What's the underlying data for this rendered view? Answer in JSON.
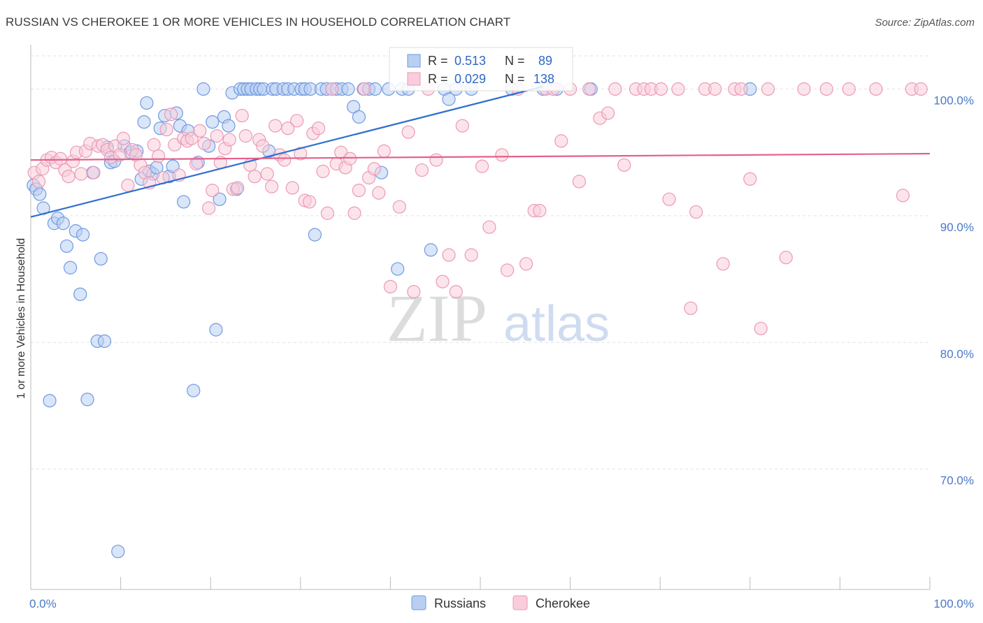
{
  "title": "RUSSIAN VS CHEROKEE 1 OR MORE VEHICLES IN HOUSEHOLD CORRELATION CHART",
  "source": "Source: ZipAtlas.com",
  "watermark": {
    "zip": "ZIP",
    "atlas": "atlas"
  },
  "chart_data": {
    "type": "scatter",
    "title": "RUSSIAN VS CHEROKEE 1 OR MORE VEHICLES IN HOUSEHOLD CORRELATION CHART",
    "xlabel": "",
    "ylabel": "1 or more Vehicles in Household",
    "xlim": [
      0,
      100
    ],
    "ylim": [
      60.5,
      103.5
    ],
    "x_tick_labels": [
      {
        "value": 0,
        "label": "0.0%"
      },
      {
        "value": 100,
        "label": "100.0%"
      }
    ],
    "x_minor_ticks": [
      10,
      20,
      30,
      40,
      50,
      60,
      70,
      80,
      90,
      100
    ],
    "y_ticks": [
      {
        "value": 70,
        "label": "70.0%"
      },
      {
        "value": 80,
        "label": "80.0%"
      },
      {
        "value": 90,
        "label": "90.0%"
      },
      {
        "value": 100,
        "label": "100.0%"
      }
    ],
    "legend_position": "bottom",
    "stats": [
      {
        "name": "Russians",
        "r_label": "R =",
        "r_value": "0.513",
        "n_label": "N =",
        "n_value": "89"
      },
      {
        "name": "Cherokee",
        "r_label": "R =",
        "r_value": "0.029",
        "n_label": "N =",
        "n_value": "138"
      }
    ],
    "series": [
      {
        "name": "Russians",
        "color": "#6f9ae0",
        "fill": "#b9cff2",
        "trend": {
          "x": [
            0,
            57
          ],
          "y": [
            89.9,
            100.2
          ],
          "color": "#2f6fd0"
        },
        "points": [
          [
            0.3,
            92.4
          ],
          [
            0.6,
            92.1
          ],
          [
            1.0,
            91.7
          ],
          [
            1.4,
            90.6
          ],
          [
            2.1,
            75.4
          ],
          [
            2.6,
            89.4
          ],
          [
            3.0,
            89.8
          ],
          [
            3.6,
            89.4
          ],
          [
            4.0,
            87.6
          ],
          [
            4.4,
            85.9
          ],
          [
            5.0,
            88.8
          ],
          [
            5.5,
            83.8
          ],
          [
            5.8,
            88.5
          ],
          [
            6.3,
            75.5
          ],
          [
            6.9,
            93.4
          ],
          [
            7.4,
            80.1
          ],
          [
            7.8,
            86.6
          ],
          [
            8.2,
            80.1
          ],
          [
            8.5,
            95.4
          ],
          [
            8.9,
            94.2
          ],
          [
            9.3,
            94.3
          ],
          [
            9.7,
            63.5
          ],
          [
            10.4,
            95.5
          ],
          [
            11.1,
            95.0
          ],
          [
            11.8,
            95.1
          ],
          [
            12.3,
            92.9
          ],
          [
            12.6,
            97.4
          ],
          [
            12.9,
            98.9
          ],
          [
            13.2,
            93.5
          ],
          [
            13.6,
            93.3
          ],
          [
            14.0,
            93.8
          ],
          [
            14.4,
            96.9
          ],
          [
            14.9,
            97.9
          ],
          [
            15.4,
            93.1
          ],
          [
            15.8,
            93.9
          ],
          [
            16.2,
            98.1
          ],
          [
            16.6,
            97.1
          ],
          [
            17.0,
            91.1
          ],
          [
            17.5,
            96.7
          ],
          [
            18.1,
            76.2
          ],
          [
            18.6,
            94.2
          ],
          [
            19.2,
            100.0
          ],
          [
            19.8,
            95.5
          ],
          [
            20.2,
            97.4
          ],
          [
            20.6,
            81.0
          ],
          [
            21.0,
            91.3
          ],
          [
            21.5,
            97.8
          ],
          [
            22.0,
            97.1
          ],
          [
            22.4,
            99.7
          ],
          [
            22.9,
            92.1
          ],
          [
            23.3,
            100.0
          ],
          [
            23.7,
            100.0
          ],
          [
            24.1,
            100.0
          ],
          [
            24.5,
            100.0
          ],
          [
            25.1,
            100.0
          ],
          [
            25.5,
            100.0
          ],
          [
            25.9,
            100.0
          ],
          [
            26.5,
            95.1
          ],
          [
            26.9,
            100.0
          ],
          [
            27.3,
            100.0
          ],
          [
            28.1,
            100.0
          ],
          [
            28.6,
            100.0
          ],
          [
            29.3,
            100.0
          ],
          [
            30.1,
            100.0
          ],
          [
            30.5,
            100.0
          ],
          [
            31.1,
            100.0
          ],
          [
            31.6,
            88.5
          ],
          [
            32.3,
            100.0
          ],
          [
            32.9,
            100.0
          ],
          [
            33.5,
            100.0
          ],
          [
            34.0,
            100.0
          ],
          [
            34.6,
            100.0
          ],
          [
            35.3,
            100.0
          ],
          [
            35.9,
            98.6
          ],
          [
            36.5,
            97.8
          ],
          [
            37.0,
            100.0
          ],
          [
            37.6,
            100.0
          ],
          [
            38.3,
            100.0
          ],
          [
            39.0,
            93.4
          ],
          [
            39.8,
            100.0
          ],
          [
            40.8,
            85.8
          ],
          [
            41.3,
            100.0
          ],
          [
            42.0,
            100.0
          ],
          [
            44.5,
            87.3
          ],
          [
            46.0,
            100.0
          ],
          [
            46.5,
            99.2
          ],
          [
            47.3,
            100.0
          ],
          [
            49.0,
            100.0
          ],
          [
            53.5,
            100.0
          ],
          [
            57.0,
            100.0
          ],
          [
            58.5,
            100.0
          ],
          [
            62.3,
            100.0
          ],
          [
            80.0,
            100.0
          ]
        ]
      },
      {
        "name": "Cherokee",
        "color": "#eb9ab5",
        "fill": "#f9cddb",
        "trend": {
          "x": [
            0,
            100
          ],
          "y": [
            94.4,
            94.9
          ],
          "color": "#e4608a"
        },
        "points": [
          [
            0.4,
            93.4
          ],
          [
            0.9,
            92.7
          ],
          [
            1.3,
            93.7
          ],
          [
            1.8,
            94.4
          ],
          [
            2.3,
            94.6
          ],
          [
            2.8,
            94.2
          ],
          [
            3.3,
            94.5
          ],
          [
            3.8,
            93.6
          ],
          [
            4.2,
            93.1
          ],
          [
            4.7,
            94.3
          ],
          [
            5.1,
            95.0
          ],
          [
            5.6,
            93.3
          ],
          [
            6.1,
            95.1
          ],
          [
            6.6,
            95.7
          ],
          [
            7.0,
            93.4
          ],
          [
            7.5,
            95.5
          ],
          [
            8.0,
            95.6
          ],
          [
            8.5,
            95.2
          ],
          [
            8.9,
            94.6
          ],
          [
            9.4,
            95.5
          ],
          [
            9.9,
            94.8
          ],
          [
            10.3,
            96.1
          ],
          [
            10.8,
            92.4
          ],
          [
            11.3,
            95.2
          ],
          [
            11.7,
            94.8
          ],
          [
            12.2,
            94.0
          ],
          [
            12.7,
            93.4
          ],
          [
            13.2,
            92.6
          ],
          [
            13.7,
            95.6
          ],
          [
            14.2,
            94.7
          ],
          [
            14.7,
            93.0
          ],
          [
            15.1,
            96.8
          ],
          [
            15.6,
            98.0
          ],
          [
            16.0,
            95.6
          ],
          [
            16.5,
            93.2
          ],
          [
            17.0,
            96.1
          ],
          [
            17.4,
            95.9
          ],
          [
            17.9,
            96.1
          ],
          [
            18.4,
            94.1
          ],
          [
            18.8,
            96.7
          ],
          [
            19.3,
            95.7
          ],
          [
            19.8,
            90.6
          ],
          [
            20.2,
            92.0
          ],
          [
            20.7,
            96.3
          ],
          [
            21.1,
            94.2
          ],
          [
            21.6,
            95.3
          ],
          [
            22.1,
            96.0
          ],
          [
            22.5,
            92.1
          ],
          [
            23.0,
            92.2
          ],
          [
            23.5,
            97.9
          ],
          [
            23.9,
            96.3
          ],
          [
            24.4,
            94.0
          ],
          [
            24.9,
            93.1
          ],
          [
            25.4,
            96.0
          ],
          [
            25.8,
            95.5
          ],
          [
            26.3,
            93.3
          ],
          [
            26.8,
            92.3
          ],
          [
            27.2,
            97.1
          ],
          [
            27.7,
            94.8
          ],
          [
            28.2,
            94.4
          ],
          [
            28.6,
            96.9
          ],
          [
            29.1,
            92.2
          ],
          [
            29.6,
            97.5
          ],
          [
            30.0,
            94.9
          ],
          [
            30.5,
            91.2
          ],
          [
            31.0,
            91.1
          ],
          [
            31.4,
            96.5
          ],
          [
            32.0,
            96.9
          ],
          [
            32.5,
            93.5
          ],
          [
            33.0,
            90.2
          ],
          [
            33.5,
            100.0
          ],
          [
            34.0,
            94.1
          ],
          [
            34.5,
            95.0
          ],
          [
            35.0,
            93.8
          ],
          [
            35.5,
            94.5
          ],
          [
            36.0,
            90.2
          ],
          [
            36.5,
            92.0
          ],
          [
            37.1,
            100.0
          ],
          [
            37.6,
            93.0
          ],
          [
            38.2,
            93.7
          ],
          [
            38.7,
            91.8
          ],
          [
            39.3,
            95.1
          ],
          [
            40.0,
            84.4
          ],
          [
            41.0,
            90.7
          ],
          [
            42.0,
            96.6
          ],
          [
            42.6,
            84.0
          ],
          [
            43.5,
            93.6
          ],
          [
            44.2,
            100.0
          ],
          [
            45.1,
            94.4
          ],
          [
            45.8,
            84.8
          ],
          [
            46.5,
            86.9
          ],
          [
            47.3,
            84.0
          ],
          [
            48.0,
            97.1
          ],
          [
            49.0,
            86.9
          ],
          [
            50.2,
            93.9
          ],
          [
            51.0,
            89.1
          ],
          [
            52.4,
            94.8
          ],
          [
            53.0,
            85.7
          ],
          [
            54.2,
            100.0
          ],
          [
            55.1,
            86.2
          ],
          [
            56.0,
            90.4
          ],
          [
            56.6,
            90.4
          ],
          [
            57.3,
            100.0
          ],
          [
            58.1,
            100.0
          ],
          [
            59.0,
            95.9
          ],
          [
            60.0,
            100.0
          ],
          [
            61.0,
            92.7
          ],
          [
            62.1,
            100.0
          ],
          [
            63.3,
            97.7
          ],
          [
            64.2,
            98.1
          ],
          [
            65.0,
            100.0
          ],
          [
            66.0,
            94.0
          ],
          [
            67.3,
            100.0
          ],
          [
            68.2,
            100.0
          ],
          [
            69.0,
            100.0
          ],
          [
            70.1,
            100.0
          ],
          [
            71.0,
            91.3
          ],
          [
            72.0,
            100.0
          ],
          [
            73.4,
            82.7
          ],
          [
            74.0,
            90.3
          ],
          [
            75.0,
            100.0
          ],
          [
            76.1,
            100.0
          ],
          [
            77.0,
            86.2
          ],
          [
            78.3,
            100.0
          ],
          [
            79.0,
            100.0
          ],
          [
            80.0,
            92.9
          ],
          [
            81.2,
            81.1
          ],
          [
            82.0,
            100.0
          ],
          [
            84.0,
            86.7
          ],
          [
            86.0,
            100.0
          ],
          [
            88.5,
            100.0
          ],
          [
            91.0,
            100.0
          ],
          [
            94.0,
            100.0
          ],
          [
            97.0,
            91.6
          ],
          [
            98.0,
            100.0
          ],
          [
            99.0,
            100.0
          ]
        ]
      }
    ]
  }
}
